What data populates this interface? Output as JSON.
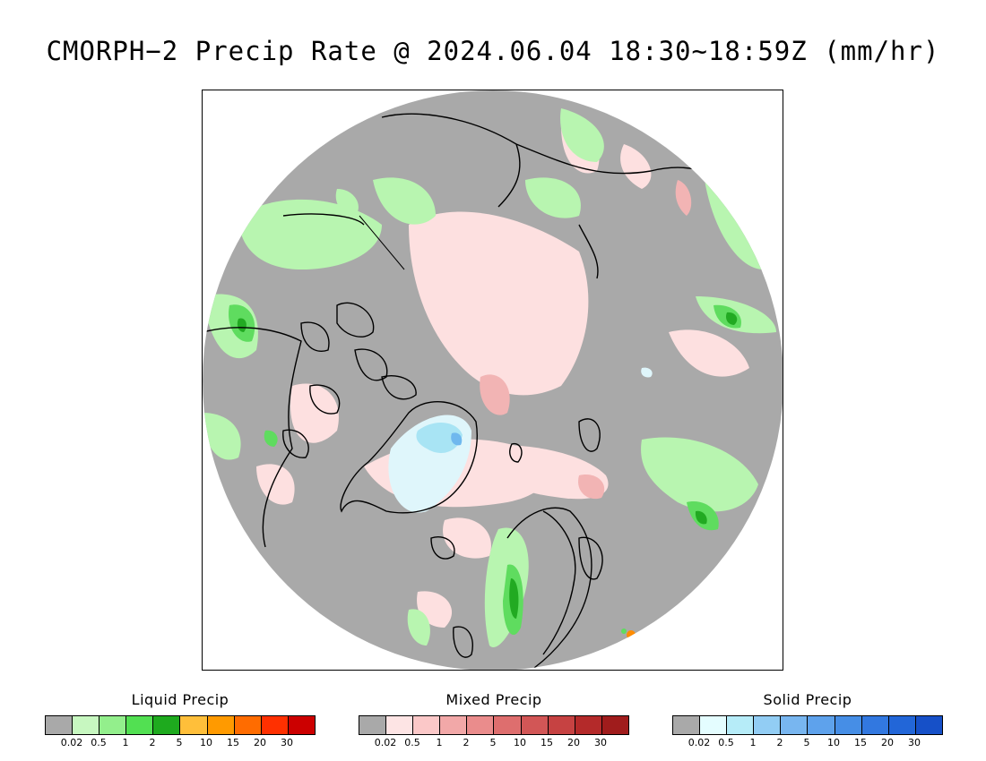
{
  "title": "CMORPH−2 Precip Rate @ 2024.06.04 18:30~18:59Z (mm/hr)",
  "map": {
    "projection": "polar stereographic (north pole)",
    "colors": {
      "no_precip": "#a9a9a9",
      "coastline": "#000000",
      "liquid_light": "#b8f5b0",
      "liquid_mid": "#5fdc5f",
      "liquid_dark": "#22aa22",
      "mixed_light": "#fde0e0",
      "mixed_mid": "#f2b4b4",
      "mixed_dark": "#e27a7a",
      "solid_light": "#dff6fb",
      "solid_mid": "#a8e4f4",
      "solid_dark": "#6fb8ee",
      "heavy_orange": "#ff8c00"
    }
  },
  "legends": [
    {
      "title": "Liquid Precip",
      "colors": [
        "#a9a9a9",
        "#c7f7c0",
        "#93ef8c",
        "#52e052",
        "#1eaa1e",
        "#ffbf3a",
        "#ff9a00",
        "#ff6c00",
        "#ff3000",
        "#cc0000"
      ],
      "ticks": [
        "0.02",
        "0.5",
        "1",
        "2",
        "5",
        "10",
        "15",
        "20",
        "30"
      ]
    },
    {
      "title": "Mixed Precip",
      "colors": [
        "#a9a9a9",
        "#fde4e4",
        "#fbc8c8",
        "#f2a8a8",
        "#ea8c8c",
        "#de6e6e",
        "#d25656",
        "#c64242",
        "#b42a2a",
        "#a01c1c"
      ],
      "ticks": [
        "0.02",
        "0.5",
        "1",
        "2",
        "5",
        "10",
        "15",
        "20",
        "30"
      ]
    },
    {
      "title": "Solid Precip",
      "colors": [
        "#a9a9a9",
        "#e4fdff",
        "#b6ecf8",
        "#92cdf4",
        "#78b6f0",
        "#5ea2ec",
        "#468ee6",
        "#3278e0",
        "#2266d8",
        "#1650c8"
      ],
      "ticks": [
        "0.02",
        "0.5",
        "1",
        "2",
        "5",
        "10",
        "15",
        "20",
        "30"
      ]
    }
  ]
}
